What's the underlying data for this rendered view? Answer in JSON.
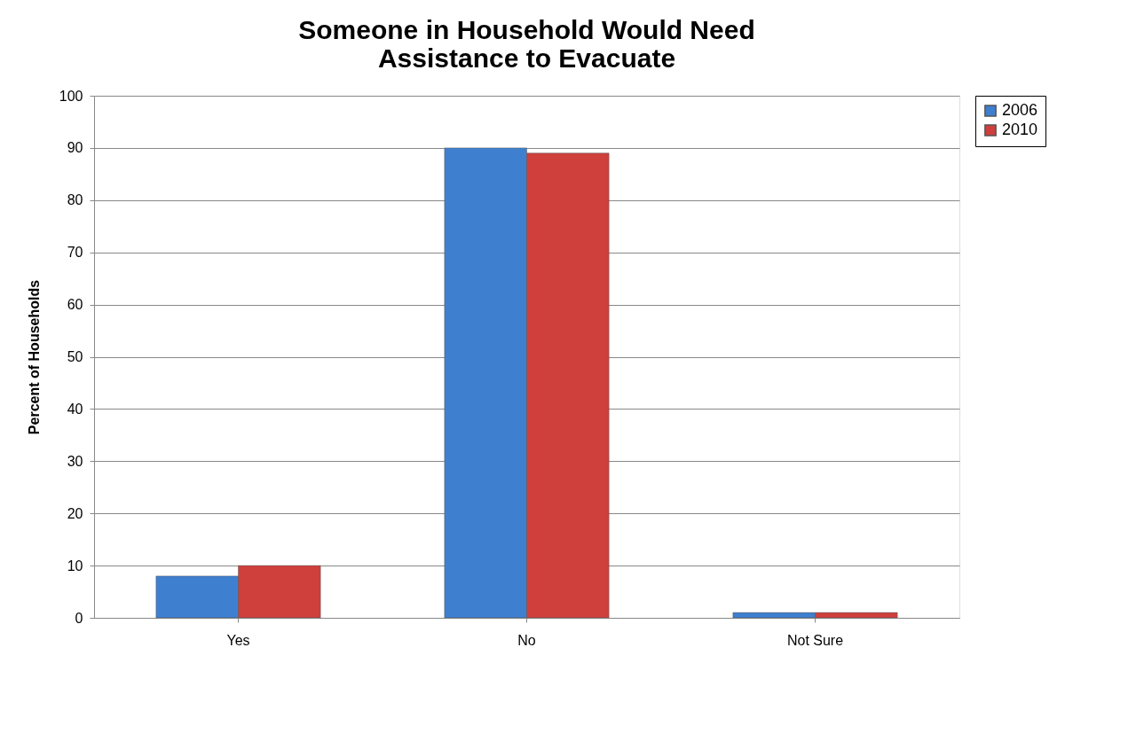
{
  "chart_data": {
    "type": "bar",
    "title": "Someone in Household Would Need Assistance to Evacuate",
    "ylabel": "Percent of Households",
    "categories": [
      "Yes",
      "No",
      "Not Sure"
    ],
    "series": [
      {
        "name": "2006",
        "color": "#3f7fcf",
        "values": [
          8,
          90,
          1
        ]
      },
      {
        "name": "2010",
        "color": "#cf3f3c",
        "values": [
          10,
          89,
          1
        ]
      }
    ],
    "ylim": [
      0,
      100
    ],
    "yticks": [
      0,
      10,
      20,
      30,
      40,
      50,
      60,
      70,
      80,
      90,
      100
    ],
    "grid": "y",
    "legend": "right"
  }
}
